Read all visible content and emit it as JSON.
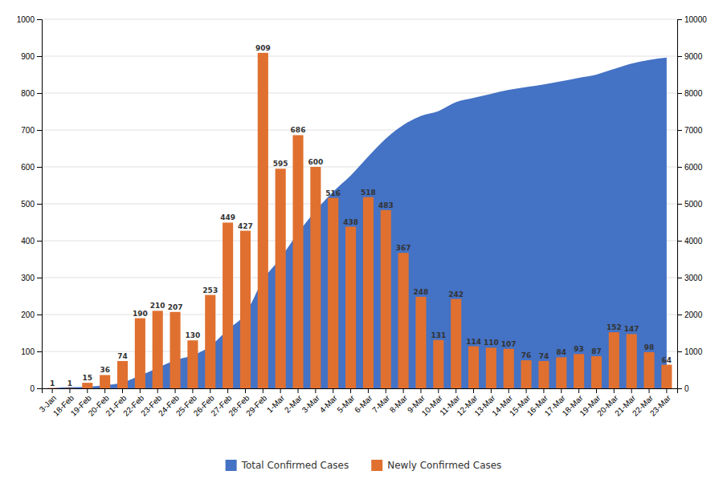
{
  "chart_data": {
    "type": "bar",
    "categories": [
      "3-Jan",
      "18-Feb",
      "19-Feb",
      "20-Feb",
      "21-Feb",
      "22-Feb",
      "23-Feb",
      "24-Feb",
      "25-Feb",
      "26-Feb",
      "27-Feb",
      "28-Feb",
      "29-Feb",
      "1-Mar",
      "2-Mar",
      "3-Mar",
      "4-Mar",
      "5-Mar",
      "6-Mar",
      "7-Mar",
      "8-Mar",
      "9-Mar",
      "10-Mar",
      "11-Mar",
      "12-Mar",
      "13-Mar",
      "14-Mar",
      "15-Mar",
      "16-Mar",
      "17-Mar",
      "18-Mar",
      "19-Mar",
      "20-Mar",
      "21-Mar",
      "22-Mar",
      "23-Mar"
    ],
    "series": [
      {
        "name": "Total Confirmed Cases",
        "type": "area",
        "color": "#4472c4",
        "axis": "y2",
        "values": [
          1,
          30,
          46,
          82,
          156,
          346,
          556,
          763,
          893,
          1146,
          1595,
          2022,
          2931,
          3526,
          4212,
          4812,
          5328,
          5766,
          6284,
          6767,
          7134,
          7382,
          7513,
          7755,
          7869,
          7979,
          8086,
          8162,
          8236,
          8320,
          8413,
          8500,
          8652,
          8799,
          8897,
          8961
        ]
      },
      {
        "name": "Newly Confirmed Cases",
        "type": "bar",
        "color": "#e07030",
        "data_labels": true,
        "values": [
          1,
          1,
          15,
          36,
          74,
          190,
          210,
          207,
          130,
          253,
          449,
          427,
          909,
          595,
          686,
          600,
          516,
          438,
          518,
          483,
          367,
          248,
          131,
          242,
          114,
          110,
          107,
          76,
          74,
          84,
          93,
          87,
          152,
          147,
          98,
          64
        ]
      }
    ],
    "ylim": [
      0,
      1000
    ],
    "yticks": [
      0,
      100,
      200,
      300,
      400,
      500,
      600,
      700,
      800,
      900,
      1000
    ],
    "y2lim": [
      0,
      10000
    ],
    "y2ticks": [
      0,
      1000,
      2000,
      3000,
      4000,
      5000,
      6000,
      7000,
      8000,
      9000,
      10000
    ],
    "grid": true,
    "legend": "bottom"
  }
}
